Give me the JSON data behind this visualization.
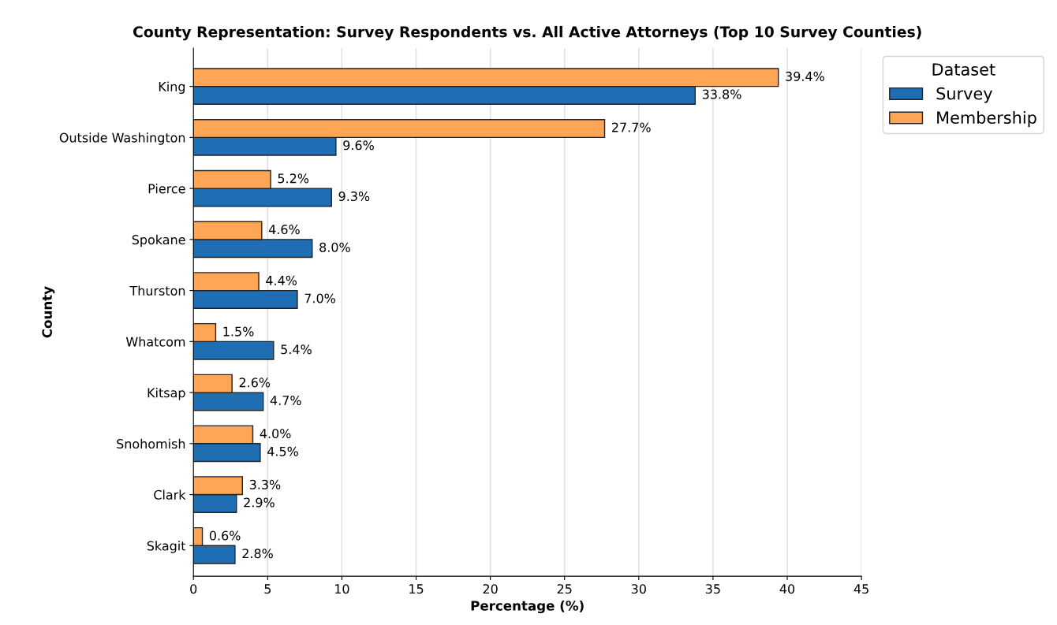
{
  "chart_data": {
    "type": "bar",
    "orientation": "horizontal",
    "title": "County Representation: Survey Respondents vs. All Active Attorneys (Top 10 Survey Counties)",
    "xlabel": "Percentage (%)",
    "ylabel": "County",
    "legend_title": "Dataset",
    "categories": [
      "King",
      "Outside Washington",
      "Pierce",
      "Spokane",
      "Thurston",
      "Whatcom",
      "Kitsap",
      "Snohomish",
      "Clark",
      "Skagit"
    ],
    "series": [
      {
        "name": "Survey",
        "color": "#1f6eb4",
        "values": [
          33.8,
          9.6,
          9.3,
          8.0,
          7.0,
          5.4,
          4.7,
          4.5,
          2.9,
          2.8
        ],
        "value_labels": [
          "33.8%",
          "9.6%",
          "9.3%",
          "8.0%",
          "7.0%",
          "5.4%",
          "4.7%",
          "4.5%",
          "2.9%",
          "2.8%"
        ]
      },
      {
        "name": "Membership",
        "color": "#ffa656",
        "values": [
          39.4,
          27.7,
          5.2,
          4.6,
          4.4,
          1.5,
          2.6,
          4.0,
          3.3,
          0.6
        ],
        "value_labels": [
          "39.4%",
          "27.7%",
          "5.2%",
          "4.6%",
          "4.4%",
          "1.5%",
          "2.6%",
          "4.0%",
          "3.3%",
          "0.6%"
        ]
      }
    ],
    "xlim": [
      0,
      45
    ],
    "xticks": [
      0,
      5,
      10,
      15,
      20,
      25,
      30,
      35,
      40,
      45
    ],
    "grid": "x",
    "legend": "top right"
  }
}
